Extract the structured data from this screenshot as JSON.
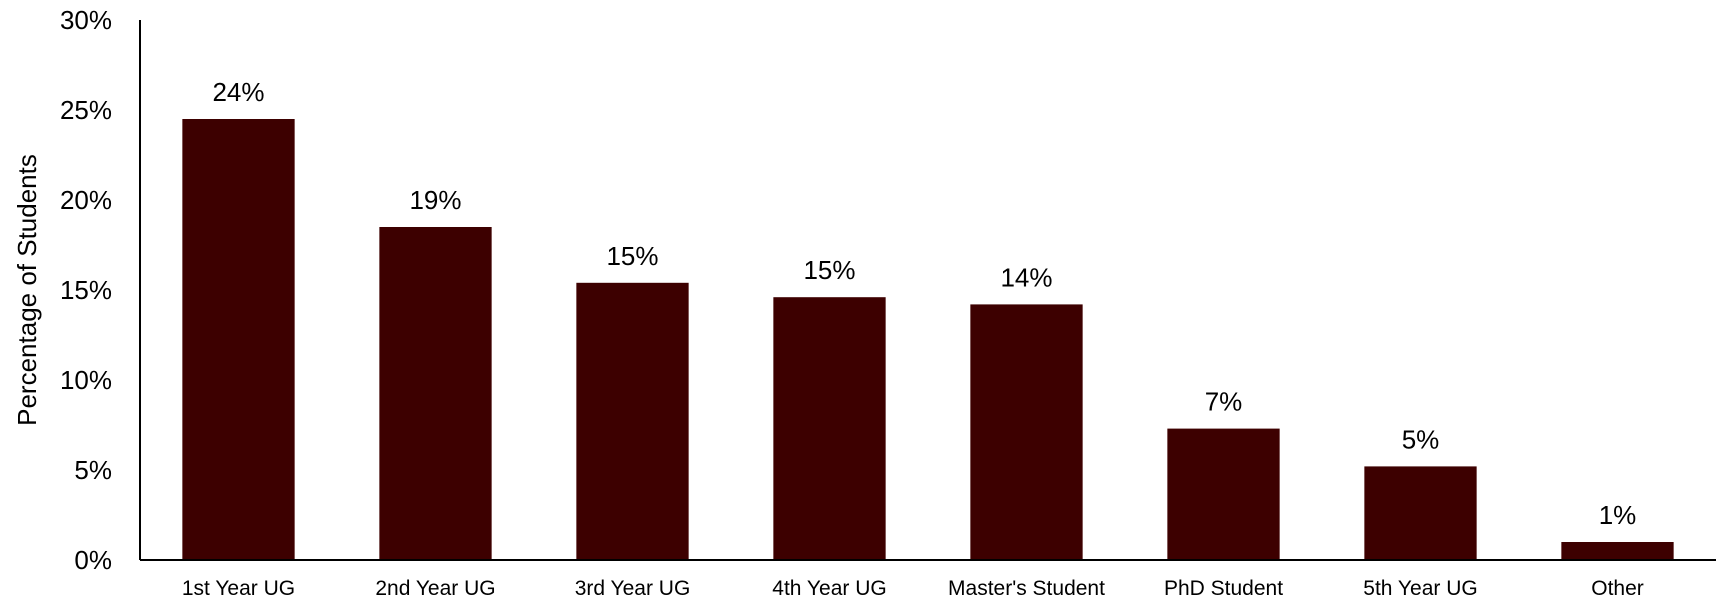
{
  "chart_data": {
    "type": "bar",
    "title": "",
    "xlabel": "",
    "ylabel": "Percentage of Students",
    "ylim": [
      0,
      30
    ],
    "yticks": [
      0,
      5,
      10,
      15,
      20,
      25,
      30
    ],
    "ytick_labels": [
      "0%",
      "5%",
      "10%",
      "15%",
      "20%",
      "25%",
      "30%"
    ],
    "grid": false,
    "legend": "none",
    "bar_color": "#3d0000",
    "categories": [
      "1st Year UG",
      "2nd Year UG",
      "3rd Year UG",
      "4th Year UG",
      "Master's Student",
      "PhD Student",
      "5th Year UG",
      "Other"
    ],
    "values": [
      24.5,
      18.5,
      15.4,
      14.6,
      14.2,
      7.3,
      5.2,
      1.0
    ],
    "data_labels": [
      "24%",
      "19%",
      "15%",
      "15%",
      "14%",
      "7%",
      "5%",
      "1%"
    ]
  }
}
